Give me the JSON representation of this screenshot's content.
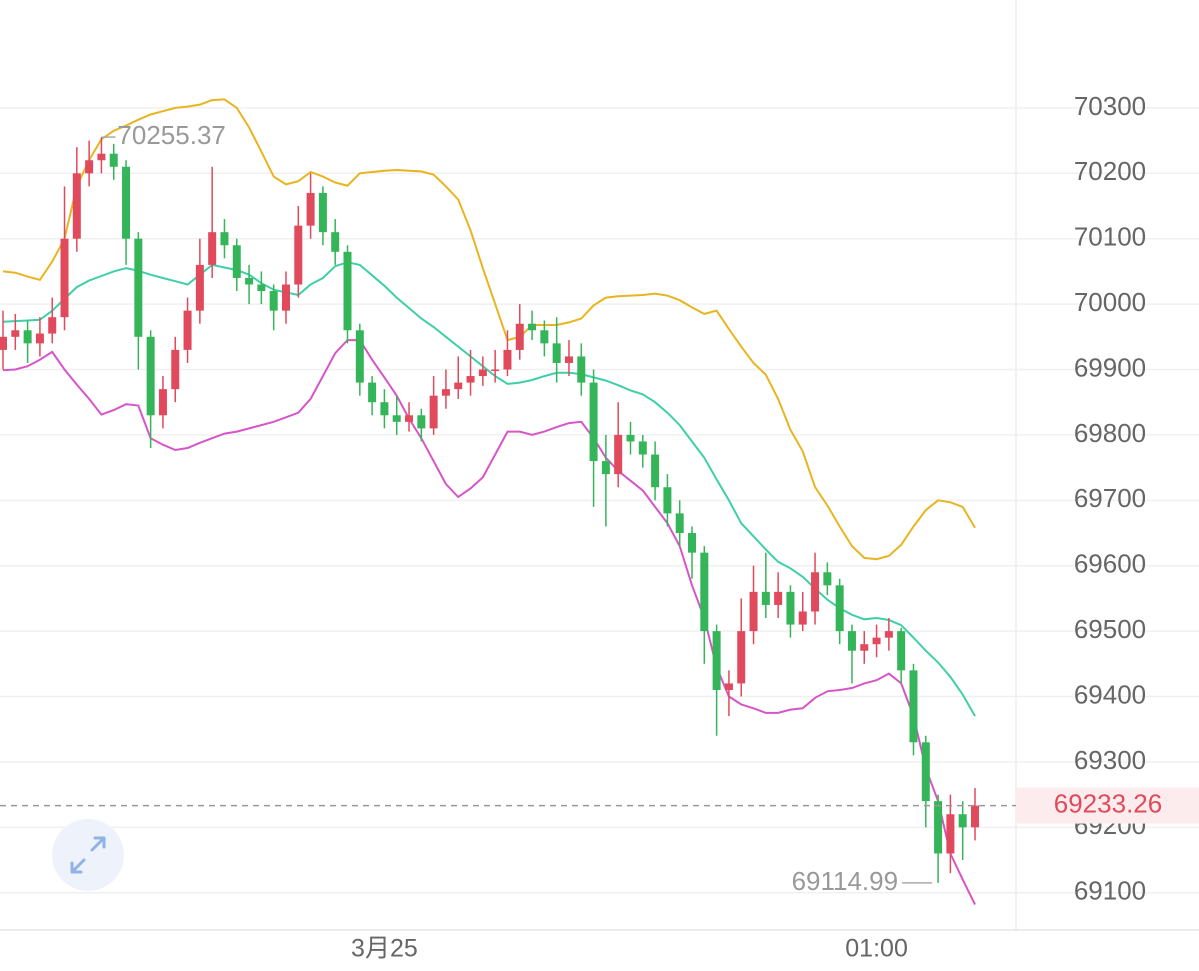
{
  "chart_data": {
    "type": "candlestick",
    "categories": [
      null,
      null,
      null,
      null,
      null,
      null,
      null,
      null,
      null,
      null,
      null,
      null,
      null,
      null,
      null,
      null,
      null,
      null,
      null,
      null,
      null,
      null,
      null,
      null,
      null,
      null,
      null,
      null,
      null,
      null,
      null,
      "3月25",
      null,
      null,
      null,
      null,
      null,
      null,
      null,
      null,
      null,
      null,
      null,
      null,
      null,
      null,
      null,
      null,
      null,
      null,
      null,
      null,
      null,
      null,
      null,
      null,
      null,
      null,
      null,
      null,
      null,
      null,
      null,
      null,
      null,
      null,
      null,
      null,
      null,
      null,
      null,
      "01:00",
      null,
      null,
      null,
      null,
      null,
      null,
      null,
      null
    ],
    "open": [
      69930,
      69950,
      69960,
      69940,
      69955,
      69980,
      70100,
      70200,
      70220,
      70230,
      70210,
      70100,
      69950,
      69830,
      69870,
      69930,
      69990,
      70060,
      70110,
      70090,
      70040,
      70030,
      70020,
      69990,
      70030,
      70120,
      70170,
      70110,
      70080,
      69960,
      69880,
      69850,
      69830,
      69820,
      69830,
      69810,
      69860,
      69870,
      69880,
      69890,
      69900,
      69900,
      69930,
      69970,
      69960,
      69940,
      69910,
      69920,
      69880,
      69760,
      69740,
      69800,
      69790,
      69770,
      69720,
      69680,
      69650,
      69620,
      69500,
      69410,
      69420,
      69500,
      69560,
      69540,
      69560,
      69510,
      69530,
      69590,
      69570,
      69500,
      69470,
      69480,
      69490,
      69500,
      69440,
      69330,
      69240,
      69160,
      69220,
      69200
    ],
    "high": [
      69990,
      69985,
      69975,
      69980,
      70010,
      70180,
      70240,
      70250,
      70255.37,
      70245,
      70220,
      70110,
      69960,
      69890,
      69950,
      70010,
      70100,
      70210,
      70130,
      70100,
      70060,
      70050,
      70030,
      70050,
      70150,
      70200,
      70180,
      70130,
      70090,
      69970,
      69890,
      69870,
      69860,
      69850,
      69840,
      69890,
      69900,
      69920,
      69930,
      69920,
      69930,
      69960,
      70000,
      69990,
      69975,
      69980,
      69945,
      69940,
      69900,
      69800,
      69850,
      69820,
      69800,
      69790,
      69740,
      69700,
      69660,
      69630,
      69510,
      69440,
      69550,
      69600,
      69620,
      69590,
      69570,
      69560,
      69620,
      69605,
      69580,
      69510,
      69500,
      69510,
      69520,
      69505,
      69450,
      69340,
      69250,
      69250,
      69240,
      69260
    ],
    "low": [
      69900,
      69930,
      69910,
      69920,
      69940,
      69960,
      70080,
      70180,
      70200,
      70190,
      70060,
      69900,
      69780,
      69810,
      69850,
      69910,
      69970,
      70040,
      70070,
      70020,
      70000,
      70000,
      69960,
      69970,
      70010,
      70100,
      70090,
      70060,
      69940,
      69860,
      69830,
      69810,
      69800,
      69805,
      69790,
      69800,
      69840,
      69855,
      69860,
      69875,
      69880,
      69890,
      69915,
      69945,
      69920,
      69880,
      69890,
      69860,
      69690,
      69660,
      69720,
      69770,
      69750,
      69700,
      69660,
      69630,
      69580,
      69450,
      69340,
      69370,
      69400,
      69480,
      69520,
      69520,
      69490,
      69500,
      69510,
      69555,
      69480,
      69420,
      69450,
      69460,
      69470,
      69420,
      69310,
      69200,
      69114.99,
      69130,
      69150,
      69180
    ],
    "close": [
      69950,
      69960,
      69940,
      69955,
      69980,
      70100,
      70200,
      70220,
      70230,
      70210,
      70100,
      69950,
      69830,
      69870,
      69930,
      69990,
      70060,
      70110,
      70090,
      70040,
      70030,
      70020,
      69990,
      70030,
      70120,
      70170,
      70110,
      70080,
      69960,
      69880,
      69850,
      69830,
      69820,
      69830,
      69810,
      69860,
      69870,
      69880,
      69890,
      69900,
      69900,
      69930,
      69970,
      69960,
      69940,
      69910,
      69920,
      69880,
      69760,
      69740,
      69800,
      69790,
      69770,
      69720,
      69680,
      69650,
      69620,
      69500,
      69410,
      69420,
      69500,
      69560,
      69540,
      69560,
      69510,
      69530,
      69590,
      69570,
      69500,
      69470,
      69480,
      69490,
      69500,
      69440,
      69330,
      69240,
      69160,
      69220,
      69200,
      69233.26
    ],
    "up_color": "#e04a5c",
    "down_color": "#35b559",
    "overlays": [
      {
        "color": "#e8b520",
        "values": [
          70050,
          70048,
          70042,
          70037,
          70065,
          70100,
          70180,
          70220,
          70252,
          70265,
          70273,
          70282,
          70290,
          70295,
          70300,
          70302,
          70305,
          70312,
          70313,
          70300,
          70270,
          70233,
          70195,
          70183,
          70188,
          70202,
          70195,
          70186,
          70181,
          70200,
          70202,
          70204,
          70205,
          70204,
          70203,
          70198,
          70180,
          70160,
          70113,
          70055,
          70000,
          69945,
          69950,
          69968,
          69968,
          69968,
          69972,
          69978,
          69998,
          70010,
          70012,
          70013,
          70014,
          70016,
          70013,
          70006,
          69995,
          69985,
          69990,
          69962,
          69935,
          69910,
          69892,
          69855,
          69808,
          69775,
          69720,
          69692,
          69660,
          69630,
          69612,
          69610,
          69615,
          69632,
          69660,
          69685,
          69700,
          69697,
          69690,
          69658
        ]
      },
      {
        "color": "#3ecfa8",
        "values": [
          69973,
          69974,
          69975,
          69976,
          69990,
          70008,
          70026,
          70036,
          70043,
          70050,
          70055,
          70051,
          70045,
          70040,
          70035,
          70030,
          70045,
          70060,
          70056,
          70052,
          70045,
          70032,
          70022,
          70018,
          70014,
          70030,
          70040,
          70058,
          70064,
          70060,
          70044,
          70028,
          70010,
          69994,
          69978,
          69965,
          69950,
          69935,
          69920,
          69905,
          69890,
          69878,
          69880,
          69884,
          69890,
          69895,
          69895,
          69893,
          69888,
          69883,
          69876,
          69868,
          69862,
          69850,
          69834,
          69815,
          69790,
          69765,
          69732,
          69700,
          69665,
          69645,
          69625,
          69606,
          69596,
          69583,
          69565,
          69548,
          69535,
          69525,
          69518,
          69520,
          69517,
          69509,
          69490,
          69470,
          69452,
          69430,
          69403,
          69370
        ]
      },
      {
        "color": "#d655c8",
        "values": [
          69899,
          69900,
          69905,
          69915,
          69927,
          69900,
          69877,
          69855,
          69831,
          69838,
          69847,
          69845,
          69795,
          69785,
          69777,
          69780,
          69788,
          69795,
          69802,
          69805,
          69810,
          69815,
          69820,
          69827,
          69834,
          69855,
          69890,
          69925,
          69945,
          69945,
          69915,
          69888,
          69860,
          69825,
          69795,
          69760,
          69725,
          69705,
          69718,
          69735,
          69770,
          69805,
          69805,
          69800,
          69805,
          69812,
          69818,
          69820,
          69795,
          69765,
          69745,
          69730,
          69715,
          69690,
          69665,
          69630,
          69570,
          69520,
          69445,
          69400,
          69388,
          69382,
          69375,
          69375,
          69380,
          69382,
          69398,
          69408,
          69410,
          69413,
          69420,
          69425,
          69435,
          69420,
          69370,
          69290,
          69240,
          69160,
          69120,
          69082
        ]
      }
    ],
    "ylim": [
      69043,
      70465
    ],
    "yticks": [
      69100,
      69200,
      69300,
      69400,
      69500,
      69600,
      69700,
      69800,
      69900,
      70000,
      70100,
      70200,
      70300
    ],
    "grid": true,
    "high_marker": 70255.37,
    "low_marker": 69114.99,
    "last_price": 69233.26
  }
}
